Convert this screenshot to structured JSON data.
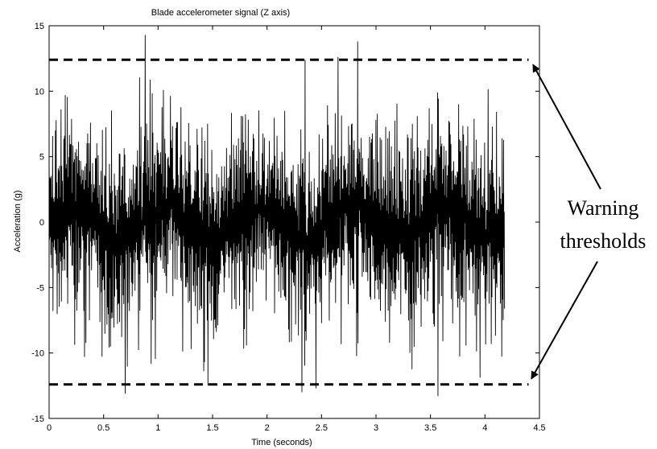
{
  "chart_data": {
    "type": "line",
    "title": "Blade accelerometer signal (Z axis)",
    "xlabel": "Time (seconds)",
    "ylabel": "Acceleration (g)",
    "xlim": [
      0,
      4.5
    ],
    "ylim": [
      -15,
      15
    ],
    "xticks": [
      0,
      0.5,
      1,
      1.5,
      2,
      2.5,
      3,
      3.5,
      4,
      4.5
    ],
    "xtick_labels": [
      "0",
      "0.5",
      "1",
      "1.5",
      "2",
      "2.5",
      "3",
      "3.5",
      "4",
      "4.5"
    ],
    "yticks": [
      -15,
      -10,
      -5,
      0,
      5,
      10,
      15
    ],
    "ytick_labels": [
      "-15",
      "-10",
      "-5",
      "0",
      "5",
      "10",
      "15"
    ],
    "grid": false,
    "series": [
      {
        "style": "solid",
        "color": "#000000",
        "signal": {
          "t_start": 0,
          "t_end": 4.18,
          "sample_count": 1300,
          "typical_amplitude": 7,
          "peaks": [
            {
              "t": 0.88,
              "y": 14.3
            },
            {
              "t": 2.35,
              "y": 12.4
            },
            {
              "t": 2.83,
              "y": 13.8
            },
            {
              "t": 2.65,
              "y": 12.6
            },
            {
              "t": 2.45,
              "y": -12.7
            },
            {
              "t": 0.7,
              "y": -13.1
            },
            {
              "t": 3.57,
              "y": -13.3
            },
            {
              "t": 2.32,
              "y": -13.0
            }
          ]
        }
      }
    ],
    "thresholds": [
      {
        "y": 12.4,
        "style": "dashed",
        "x_start": 0,
        "x_end": 4.4
      },
      {
        "y": -12.4,
        "style": "dashed",
        "x_start": 0,
        "x_end": 4.4
      }
    ],
    "annotation": {
      "lines": [
        "Warning",
        "thresholds"
      ]
    }
  }
}
